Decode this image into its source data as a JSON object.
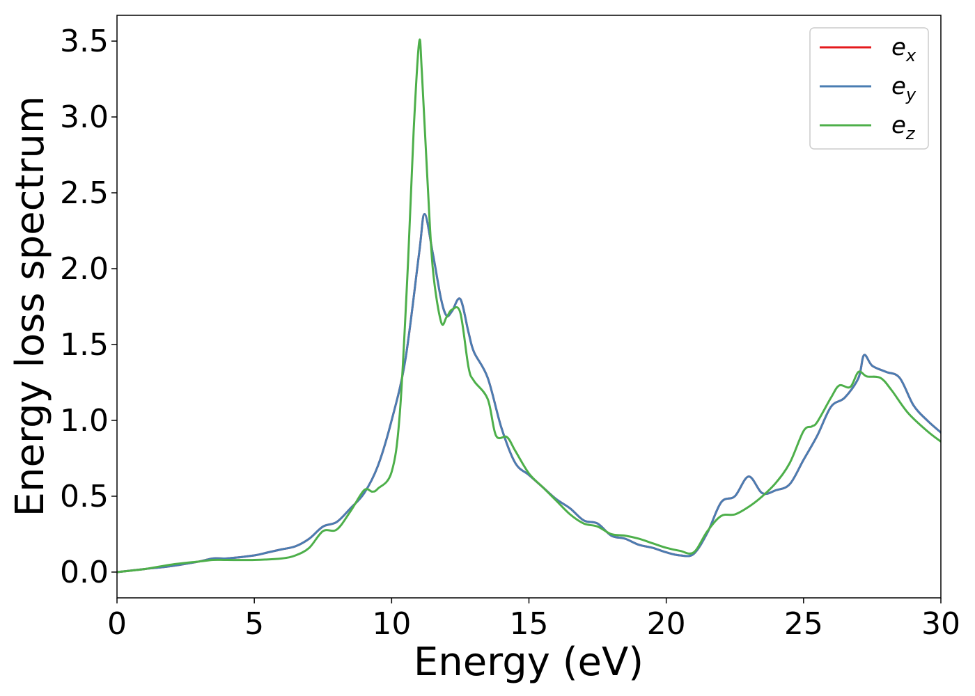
{
  "chart_data": {
    "type": "line",
    "title": "",
    "xlabel": "Energy (eV)",
    "ylabel": "Energy loss spectrum",
    "xlim": [
      0,
      30
    ],
    "ylim": [
      -0.17,
      3.67
    ],
    "xticks": [
      0,
      5,
      10,
      15,
      20,
      25,
      30
    ],
    "xtick_labels": [
      "0",
      "5",
      "10",
      "15",
      "20",
      "25",
      "30"
    ],
    "yticks": [
      0.0,
      0.5,
      1.0,
      1.5,
      2.0,
      2.5,
      3.0,
      3.5
    ],
    "ytick_labels": [
      "0.0",
      "0.5",
      "1.0",
      "1.5",
      "2.0",
      "2.5",
      "3.0",
      "3.5"
    ],
    "grid": false,
    "legend_position": "top-right",
    "series": [
      {
        "name": "e_x",
        "label_base": "e",
        "label_sub": "x",
        "color": "#e41a1c",
        "x": [
          0,
          1,
          2,
          3,
          3.5,
          4,
          5,
          5.5,
          6,
          6.5,
          7,
          7.5,
          8,
          8.5,
          9,
          9.5,
          10,
          10.5,
          11,
          11.2,
          11.5,
          11.8,
          12,
          12.2,
          12.5,
          12.8,
          13,
          13.5,
          14,
          14.5,
          15,
          15.5,
          16,
          16.5,
          17,
          17.5,
          18,
          18.5,
          19,
          19.5,
          20,
          20.5,
          21,
          21.5,
          22,
          22.5,
          23,
          23.5,
          24,
          24.5,
          25,
          25.5,
          26,
          26.5,
          27,
          27.2,
          27.5,
          28,
          28.5,
          29,
          29.5,
          30
        ],
        "y": [
          0.0,
          0.02,
          0.04,
          0.07,
          0.09,
          0.09,
          0.11,
          0.13,
          0.15,
          0.17,
          0.22,
          0.3,
          0.33,
          0.42,
          0.52,
          0.7,
          1.0,
          1.4,
          2.1,
          2.36,
          2.1,
          1.8,
          1.69,
          1.72,
          1.8,
          1.58,
          1.45,
          1.28,
          0.95,
          0.72,
          0.64,
          0.56,
          0.48,
          0.42,
          0.34,
          0.32,
          0.24,
          0.22,
          0.18,
          0.16,
          0.13,
          0.11,
          0.12,
          0.26,
          0.46,
          0.5,
          0.63,
          0.52,
          0.54,
          0.58,
          0.74,
          0.9,
          1.09,
          1.15,
          1.28,
          1.43,
          1.36,
          1.32,
          1.28,
          1.1,
          1.0,
          0.92
        ]
      },
      {
        "name": "e_y",
        "label_base": "e",
        "label_sub": "y",
        "color": "#4a7db2",
        "x": [
          0,
          1,
          2,
          3,
          3.5,
          4,
          5,
          5.5,
          6,
          6.5,
          7,
          7.5,
          8,
          8.5,
          9,
          9.5,
          10,
          10.5,
          11,
          11.2,
          11.5,
          11.8,
          12,
          12.2,
          12.5,
          12.8,
          13,
          13.5,
          14,
          14.5,
          15,
          15.5,
          16,
          16.5,
          17,
          17.5,
          18,
          18.5,
          19,
          19.5,
          20,
          20.5,
          21,
          21.5,
          22,
          22.5,
          23,
          23.5,
          24,
          24.5,
          25,
          25.5,
          26,
          26.5,
          27,
          27.2,
          27.5,
          28,
          28.5,
          29,
          29.5,
          30
        ],
        "y": [
          0.0,
          0.02,
          0.04,
          0.07,
          0.09,
          0.09,
          0.11,
          0.13,
          0.15,
          0.17,
          0.22,
          0.3,
          0.33,
          0.42,
          0.52,
          0.7,
          1.0,
          1.4,
          2.1,
          2.36,
          2.1,
          1.8,
          1.69,
          1.72,
          1.8,
          1.58,
          1.45,
          1.28,
          0.95,
          0.72,
          0.64,
          0.56,
          0.48,
          0.42,
          0.34,
          0.32,
          0.24,
          0.22,
          0.18,
          0.16,
          0.13,
          0.11,
          0.12,
          0.26,
          0.46,
          0.5,
          0.63,
          0.52,
          0.54,
          0.58,
          0.74,
          0.9,
          1.09,
          1.15,
          1.28,
          1.43,
          1.36,
          1.32,
          1.28,
          1.1,
          1.0,
          0.92
        ]
      },
      {
        "name": "e_z",
        "label_base": "e",
        "label_sub": "z",
        "color": "#4daf4a",
        "x": [
          0,
          1,
          2,
          3,
          3.5,
          4,
          5,
          6,
          6.5,
          7,
          7.5,
          8,
          8.5,
          9,
          9.3,
          9.5,
          10,
          10.3,
          10.6,
          10.8,
          11,
          11.1,
          11.3,
          11.5,
          11.8,
          12,
          12.2,
          12.5,
          12.8,
          13,
          13.5,
          13.8,
          14.2,
          14.5,
          15,
          15.5,
          16,
          16.5,
          17,
          17.5,
          18,
          18.5,
          19,
          19.5,
          20,
          20.5,
          21,
          21.5,
          22,
          22.5,
          23,
          23.5,
          24,
          24.5,
          25,
          25.3,
          25.5,
          26,
          26.3,
          26.7,
          27,
          27.3,
          27.8,
          28.2,
          28.8,
          29.5,
          30
        ],
        "y": [
          0.0,
          0.02,
          0.05,
          0.07,
          0.08,
          0.08,
          0.08,
          0.09,
          0.11,
          0.16,
          0.27,
          0.28,
          0.4,
          0.54,
          0.53,
          0.55,
          0.66,
          1.05,
          2.05,
          2.9,
          3.49,
          3.3,
          2.6,
          2.0,
          1.65,
          1.68,
          1.73,
          1.71,
          1.35,
          1.26,
          1.14,
          0.9,
          0.89,
          0.8,
          0.65,
          0.56,
          0.47,
          0.38,
          0.32,
          0.3,
          0.25,
          0.24,
          0.22,
          0.19,
          0.16,
          0.14,
          0.13,
          0.27,
          0.37,
          0.38,
          0.43,
          0.5,
          0.59,
          0.72,
          0.93,
          0.96,
          0.99,
          1.15,
          1.23,
          1.22,
          1.32,
          1.29,
          1.28,
          1.2,
          1.05,
          0.93,
          0.86
        ]
      }
    ]
  }
}
